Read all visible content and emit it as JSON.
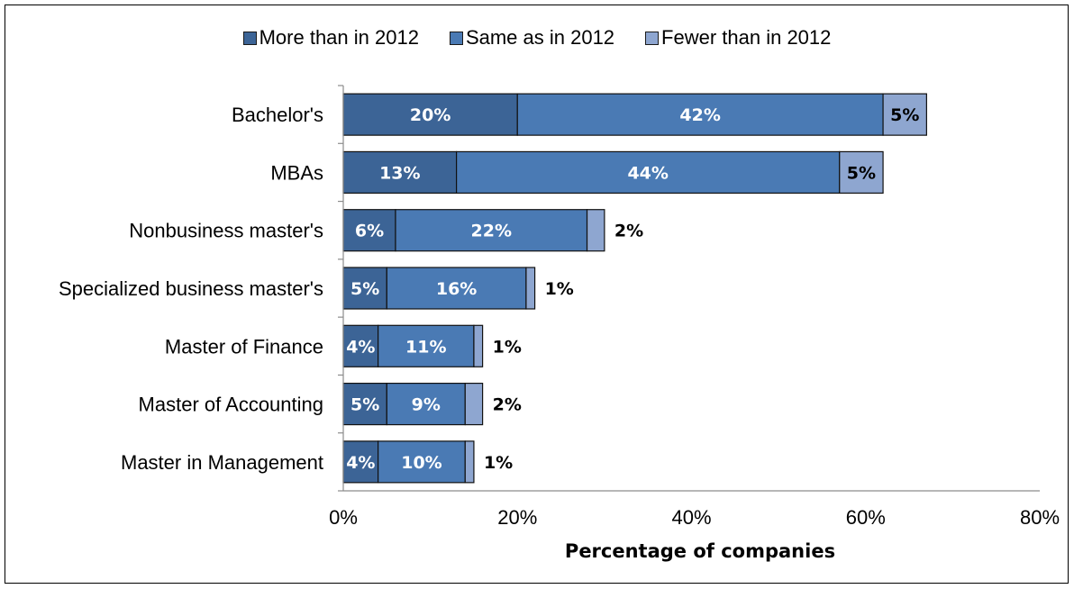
{
  "chart_data": {
    "type": "bar",
    "orientation": "horizontal",
    "stacked": true,
    "categories": [
      "Bachelor's",
      "MBAs",
      "Nonbusiness master's",
      "Specialized business master's",
      "Master of Finance",
      "Master of Accounting",
      "Master in Management"
    ],
    "series": [
      {
        "name": "More than in 2012",
        "color": "#3c6496",
        "values": [
          20,
          13,
          6,
          5,
          4,
          5,
          4
        ],
        "labels": [
          "20%",
          "13%",
          "6%",
          "5%",
          "4%",
          "5%",
          "4%"
        ]
      },
      {
        "name": "Same as in 2012",
        "color": "#4a7ab4",
        "values": [
          42,
          44,
          22,
          16,
          11,
          9,
          10
        ],
        "labels": [
          "42%",
          "44%",
          "22%",
          "16%",
          "11%",
          "9%",
          "10%"
        ]
      },
      {
        "name": "Fewer than in 2012",
        "color": "#8ea6d0",
        "values": [
          5,
          5,
          2,
          1,
          1,
          2,
          1
        ],
        "labels": [
          "5%",
          "5%",
          "2%",
          "1%",
          "1%",
          "2%",
          "1%"
        ]
      }
    ],
    "xlabel": "Percentage of companies",
    "ylabel": "",
    "xlim": [
      0,
      80
    ],
    "xticks": [
      "0%",
      "20%",
      "40%",
      "60%",
      "80%"
    ],
    "grid": false,
    "legend_position": "top"
  }
}
